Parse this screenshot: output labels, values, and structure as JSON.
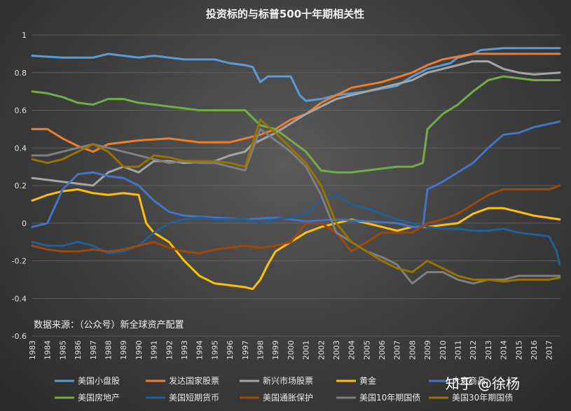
{
  "chart_data": {
    "type": "line",
    "title": "投资标的与标普500十年期相关性",
    "source_note": "数据来源：（公众号）新全球资产配置",
    "watermark": "知乎 @徐杨",
    "ylim": [
      -0.6,
      1.0
    ],
    "yticks": [
      "1",
      "0.8",
      "0.6",
      "0.4",
      "0.2",
      "0",
      "-0.2",
      "-0.4",
      "-0.6"
    ],
    "ytick_values": [
      1.0,
      0.8,
      0.6,
      0.4,
      0.2,
      0.0,
      -0.2,
      -0.4,
      -0.6
    ],
    "xlim": [
      1983,
      2017.75
    ],
    "xticks": [
      "1983",
      "1984",
      "1985",
      "1986",
      "1987",
      "1988",
      "1989",
      "1990",
      "1991",
      "1992",
      "1993",
      "1994",
      "1995",
      "1996",
      "1997",
      "1998",
      "1999",
      "2000",
      "2001",
      "2002",
      "2003",
      "2004",
      "2005",
      "2006",
      "2007",
      "2008",
      "2009",
      "2010",
      "2011",
      "2012",
      "2013",
      "2014",
      "2015",
      "2016",
      "2017"
    ],
    "grid": "horizontal",
    "legend_position": "bottom",
    "series": [
      {
        "name": "美国小盘股",
        "color": "#5b9bd5",
        "x": [
          1983,
          1985,
          1987,
          1988,
          1990,
          1991,
          1993,
          1995,
          1996,
          1997,
          1997.5,
          1998,
          1998.5,
          1999,
          2000,
          2000.6,
          2001,
          2002,
          2003,
          2005,
          2007,
          2008,
          2009,
          2010.5,
          2011,
          2012,
          2012.5,
          2014,
          2016,
          2017.7
        ],
        "y": [
          0.89,
          0.88,
          0.88,
          0.9,
          0.88,
          0.89,
          0.87,
          0.87,
          0.85,
          0.84,
          0.83,
          0.75,
          0.78,
          0.78,
          0.78,
          0.68,
          0.65,
          0.66,
          0.68,
          0.7,
          0.73,
          0.78,
          0.82,
          0.85,
          0.88,
          0.9,
          0.92,
          0.93,
          0.93,
          0.93
        ]
      },
      {
        "name": "发达国家股票",
        "color": "#ed7d31",
        "x": [
          1983,
          1984,
          1985,
          1986,
          1987,
          1988,
          1990,
          1992,
          1994,
          1996,
          1997,
          1998,
          1999,
          2000,
          2001,
          2002,
          2003,
          2004,
          2006,
          2008,
          2009,
          2010,
          2012,
          2014,
          2016,
          2017.7
        ],
        "y": [
          0.5,
          0.5,
          0.45,
          0.41,
          0.38,
          0.42,
          0.44,
          0.45,
          0.43,
          0.43,
          0.45,
          0.47,
          0.5,
          0.55,
          0.58,
          0.64,
          0.68,
          0.72,
          0.75,
          0.8,
          0.84,
          0.87,
          0.9,
          0.9,
          0.9,
          0.9
        ]
      },
      {
        "name": "新兴市场股票",
        "color": "#a5a5a5",
        "x": [
          1983,
          1984,
          1985,
          1986,
          1987,
          1988,
          1989,
          1990,
          1991,
          1992,
          1993,
          1995,
          1996,
          1997,
          1997.5,
          1998,
          1999,
          2000,
          2001,
          2002,
          2003,
          2004,
          2005,
          2006,
          2007,
          2008,
          2009,
          2010,
          2011,
          2012,
          2013,
          2014,
          2015,
          2016,
          2017.7
        ],
        "y": [
          0.24,
          0.23,
          0.22,
          0.21,
          0.2,
          0.27,
          0.3,
          0.27,
          0.33,
          0.33,
          0.32,
          0.33,
          0.36,
          0.38,
          0.42,
          0.44,
          0.48,
          0.53,
          0.58,
          0.62,
          0.66,
          0.68,
          0.7,
          0.72,
          0.74,
          0.76,
          0.8,
          0.82,
          0.84,
          0.86,
          0.86,
          0.82,
          0.8,
          0.79,
          0.8
        ]
      },
      {
        "name": "黄金",
        "color": "#ffc000",
        "x": [
          1983,
          1984,
          1985,
          1986,
          1987,
          1988,
          1989,
          1990,
          1990.5,
          1991,
          1992,
          1993,
          1994,
          1995,
          1996,
          1997,
          1997.5,
          1998,
          1998.5,
          1999,
          2000,
          2001,
          2002,
          2003,
          2004,
          2005,
          2006,
          2007,
          2008,
          2009,
          2010,
          2011,
          2012,
          2013,
          2014,
          2015,
          2016,
          2017.7
        ],
        "y": [
          0.12,
          0.15,
          0.17,
          0.18,
          0.16,
          0.15,
          0.16,
          0.15,
          0.0,
          -0.05,
          -0.1,
          -0.2,
          -0.28,
          -0.32,
          -0.33,
          -0.34,
          -0.35,
          -0.3,
          -0.22,
          -0.15,
          -0.1,
          -0.05,
          -0.02,
          0.0,
          0.02,
          0.0,
          -0.02,
          -0.04,
          -0.02,
          -0.02,
          -0.01,
          0.0,
          0.05,
          0.08,
          0.08,
          0.06,
          0.04,
          0.02
        ]
      },
      {
        "name": "大宗商品",
        "color": "#4472c4",
        "x": [
          1983,
          1984,
          1985,
          1986,
          1987,
          1988,
          1989,
          1990,
          1991,
          1992,
          1993,
          1995,
          1997,
          1999,
          2001,
          2003,
          2005,
          2007,
          2008,
          2008.7,
          2009,
          2010,
          2011,
          2012,
          2013,
          2014,
          2015,
          2016,
          2017.7
        ],
        "y": [
          -0.02,
          0.0,
          0.18,
          0.26,
          0.27,
          0.25,
          0.24,
          0.2,
          0.12,
          0.06,
          0.04,
          0.03,
          0.02,
          0.03,
          0.01,
          0.02,
          0.01,
          0.0,
          -0.02,
          -0.02,
          0.18,
          0.22,
          0.27,
          0.32,
          0.4,
          0.47,
          0.48,
          0.51,
          0.54
        ]
      },
      {
        "name": "美国房地产",
        "color": "#70ad47",
        "x": [
          1983,
          1984,
          1985,
          1986,
          1987,
          1988,
          1989,
          1990,
          1991,
          1992,
          1993,
          1994,
          1995,
          1996,
          1997,
          1998,
          1999,
          2000,
          2001,
          2002,
          2003,
          2004,
          2005,
          2006,
          2007,
          2008,
          2008.7,
          2009,
          2010,
          2011,
          2012,
          2013,
          2014,
          2015,
          2016,
          2017.7
        ],
        "y": [
          0.7,
          0.69,
          0.67,
          0.64,
          0.63,
          0.66,
          0.66,
          0.64,
          0.63,
          0.62,
          0.61,
          0.6,
          0.6,
          0.6,
          0.6,
          0.52,
          0.5,
          0.44,
          0.38,
          0.28,
          0.27,
          0.27,
          0.28,
          0.29,
          0.3,
          0.3,
          0.32,
          0.5,
          0.58,
          0.63,
          0.7,
          0.76,
          0.78,
          0.77,
          0.76,
          0.76
        ]
      },
      {
        "name": "美国短期货币",
        "color": "#255e91",
        "x": [
          1983,
          1984,
          1985,
          1986,
          1987,
          1988,
          1989,
          1990,
          1991,
          1992,
          1993,
          1994,
          1995,
          1996,
          1997,
          1998,
          1999,
          2000,
          2001,
          2002,
          2003,
          2004,
          2005,
          2006,
          2007,
          2008,
          2009,
          2010,
          2011,
          2012,
          2013,
          2014,
          2015,
          2016,
          2017,
          2017.5,
          2017.7
        ],
        "y": [
          -0.1,
          -0.12,
          -0.12,
          -0.1,
          -0.12,
          -0.16,
          -0.15,
          -0.12,
          -0.05,
          0.0,
          0.02,
          0.03,
          0.02,
          0.02,
          0.02,
          0.0,
          0.02,
          0.03,
          0.05,
          0.12,
          0.15,
          0.1,
          0.08,
          0.05,
          0.02,
          0.0,
          -0.02,
          -0.03,
          -0.03,
          -0.04,
          -0.04,
          -0.03,
          -0.05,
          -0.06,
          -0.07,
          -0.15,
          -0.22
        ]
      },
      {
        "name": "美国通胀保护",
        "color": "#9e480e",
        "x": [
          1983,
          1984,
          1985,
          1986,
          1987,
          1988,
          1989,
          1990,
          1991,
          1992,
          1993,
          1994,
          1995,
          1996,
          1997,
          1998,
          1999,
          2000,
          2001,
          2002,
          2003,
          2004,
          2005,
          2006,
          2007,
          2008,
          2009,
          2010,
          2011,
          2012,
          2013,
          2014,
          2015,
          2016,
          2017,
          2017.7
        ],
        "y": [
          -0.12,
          -0.14,
          -0.15,
          -0.15,
          -0.14,
          -0.15,
          -0.14,
          -0.12,
          -0.1,
          -0.13,
          -0.15,
          -0.16,
          -0.14,
          -0.13,
          -0.12,
          -0.13,
          -0.12,
          -0.1,
          0.0,
          0.0,
          -0.05,
          -0.15,
          -0.1,
          -0.05,
          -0.05,
          -0.05,
          0.0,
          0.02,
          0.05,
          0.1,
          0.15,
          0.18,
          0.18,
          0.18,
          0.18,
          0.2
        ]
      },
      {
        "name": "美国10年期国债",
        "color": "#7f7f7f",
        "x": [
          1983,
          1984,
          1985,
          1986,
          1987,
          1988,
          1989,
          1990,
          1991,
          1992,
          1993,
          1994,
          1995,
          1996,
          1997,
          1998,
          1999,
          2000,
          2001,
          2002,
          2003,
          2004,
          2005,
          2006,
          2007,
          2008,
          2009,
          2010,
          2011,
          2012,
          2013,
          2014,
          2015,
          2016,
          2017,
          2017.7
        ],
        "y": [
          0.36,
          0.36,
          0.38,
          0.4,
          0.42,
          0.4,
          0.38,
          0.36,
          0.34,
          0.32,
          0.33,
          0.32,
          0.32,
          0.3,
          0.28,
          0.5,
          0.44,
          0.38,
          0.3,
          0.15,
          -0.05,
          -0.1,
          -0.15,
          -0.18,
          -0.22,
          -0.32,
          -0.26,
          -0.26,
          -0.3,
          -0.32,
          -0.3,
          -0.3,
          -0.28,
          -0.28,
          -0.28,
          -0.28
        ]
      },
      {
        "name": "美国30年期国债",
        "color": "#997300",
        "x": [
          1983,
          1984,
          1985,
          1986,
          1987,
          1988,
          1989,
          1990,
          1991,
          1992,
          1993,
          1994,
          1995,
          1996,
          1997,
          1998,
          1999,
          2000,
          2001,
          2002,
          2003,
          2004,
          2005,
          2006,
          2007,
          2008,
          2009,
          2010,
          2011,
          2012,
          2013,
          2014,
          2015,
          2016,
          2017,
          2017.7
        ],
        "y": [
          0.34,
          0.32,
          0.34,
          0.38,
          0.42,
          0.38,
          0.3,
          0.3,
          0.36,
          0.35,
          0.33,
          0.33,
          0.33,
          0.32,
          0.3,
          0.55,
          0.48,
          0.4,
          0.32,
          0.2,
          0.0,
          -0.1,
          -0.15,
          -0.2,
          -0.24,
          -0.26,
          -0.2,
          -0.24,
          -0.28,
          -0.3,
          -0.3,
          -0.31,
          -0.3,
          -0.3,
          -0.3,
          -0.29
        ]
      }
    ]
  }
}
